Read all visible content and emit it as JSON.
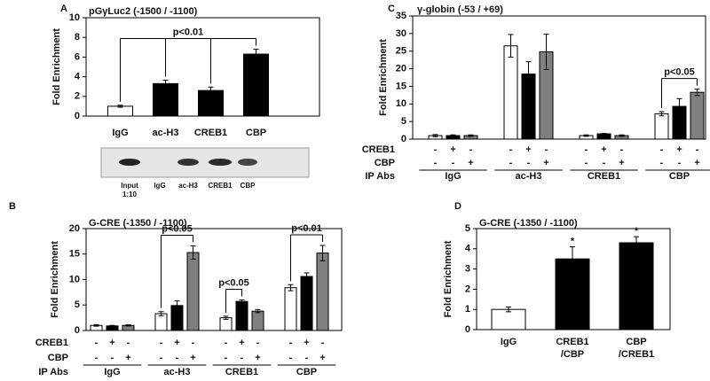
{
  "chart_data": [
    {
      "type": "bar",
      "panel": "A",
      "title": "pGγLuc2 (-1500 / -1100)",
      "y_label": "Fold Enrichment",
      "categories": [
        "IgG",
        "ac-H3",
        "CREB1",
        "CBP"
      ],
      "values": [
        1,
        3.3,
        2.6,
        6.3
      ],
      "errors": [
        0.1,
        0.35,
        0.35,
        0.5
      ],
      "colors": [
        "#ffffff",
        "#000000",
        "#000000",
        "#000000"
      ],
      "ylim": [
        0,
        10
      ],
      "yticks": [
        0,
        2,
        4,
        6,
        8,
        10
      ],
      "brackets": [
        {
          "text": "p<0.01",
          "bars": [
            [
              0
            ],
            [
              1
            ],
            [
              2
            ],
            [
              3
            ]
          ]
        }
      ],
      "gel_lanes": [
        [
          "Input",
          "1:10"
        ],
        [
          "IgG"
        ],
        [
          "ac-H3"
        ],
        [
          "CREB1"
        ],
        [
          "CBP"
        ]
      ]
    },
    {
      "type": "grouped-bar",
      "panel": "C",
      "title": "γ-globin  (-53 / +69)",
      "y_label": "Fold Enrichment",
      "categories": [
        "IgG",
        "ac-H3",
        "CREB1",
        "CBP"
      ],
      "series": [
        {
          "color": "#ffffff",
          "values": [
            1,
            26.5,
            1,
            7.2
          ],
          "errors": [
            0.3,
            3.2,
            0.2,
            0.6
          ]
        },
        {
          "color": "#000000",
          "values": [
            1,
            18.5,
            1.5,
            9.3
          ],
          "errors": [
            0.2,
            3.5,
            0.1,
            2.2
          ]
        },
        {
          "color": "#808080",
          "values": [
            1,
            24.8,
            1,
            13.3
          ],
          "errors": [
            0.2,
            5,
            0.2,
            0.9
          ]
        }
      ],
      "ylim": [
        0,
        35
      ],
      "yticks": [
        0,
        5,
        10,
        15,
        20,
        25,
        30,
        35
      ],
      "brackets": [
        {
          "text": "p<0.05",
          "bars": [
            [
              3,
              0
            ],
            [
              3,
              2
            ]
          ]
        }
      ],
      "treatments": {
        "rows": [
          {
            "label": "CREB1",
            "marks": [
              "-",
              "+",
              "-"
            ]
          },
          {
            "label": "CBP",
            "marks": [
              "-",
              "-",
              "+"
            ]
          }
        ],
        "group_label": "IP Abs"
      }
    },
    {
      "type": "grouped-bar",
      "panel": "B",
      "title": "G-CRE  (-1350 / -1100)",
      "y_label": "Fold Enrichment",
      "categories": [
        "IgG",
        "ac-H3",
        "CREB1",
        "CBP"
      ],
      "series": [
        {
          "color": "#ffffff",
          "values": [
            1,
            3.3,
            2.5,
            8.4
          ],
          "errors": [
            0.15,
            0.4,
            0.3,
            0.6
          ]
        },
        {
          "color": "#000000",
          "values": [
            0.9,
            4.9,
            5.7,
            10.6
          ],
          "errors": [
            0.1,
            0.9,
            0.3,
            0.7
          ]
        },
        {
          "color": "#808080",
          "values": [
            1,
            15.3,
            3.8,
            15.2
          ],
          "errors": [
            0.1,
            1.3,
            0.3,
            1.5
          ]
        }
      ],
      "ylim": [
        0,
        20
      ],
      "yticks": [
        0,
        5,
        10,
        15,
        20
      ],
      "brackets": [
        {
          "text": "p<0.05",
          "bars": [
            [
              1,
              0
            ],
            [
              1,
              2
            ]
          ]
        },
        {
          "text": "p<0.05",
          "bars": [
            [
              2,
              0
            ],
            [
              2,
              1
            ]
          ]
        },
        {
          "text": "p<0.01",
          "bars": [
            [
              3,
              0
            ],
            [
              3,
              2
            ]
          ]
        }
      ],
      "treatments": {
        "rows": [
          {
            "label": "CREB1",
            "marks": [
              "-",
              "+",
              "-"
            ]
          },
          {
            "label": "CBP",
            "marks": [
              "-",
              "-",
              "+"
            ]
          }
        ],
        "group_label": "IP Abs"
      }
    },
    {
      "type": "bar",
      "panel": "D",
      "title": "G-CRE  (-1350 / -1100)",
      "y_label": "Fold Enrichment",
      "categories": [
        [
          "IgG"
        ],
        [
          "CREB1",
          "/CBP"
        ],
        [
          "CBP",
          "/CREB1"
        ]
      ],
      "values": [
        1,
        3.5,
        4.3
      ],
      "errors": [
        0.12,
        0.6,
        0.3
      ],
      "colors": [
        "#ffffff",
        "#000000",
        "#000000"
      ],
      "ylim": [
        0,
        5
      ],
      "yticks": [
        0,
        1,
        2,
        3,
        4,
        5
      ],
      "markers": [
        null,
        "*",
        "*"
      ]
    }
  ]
}
